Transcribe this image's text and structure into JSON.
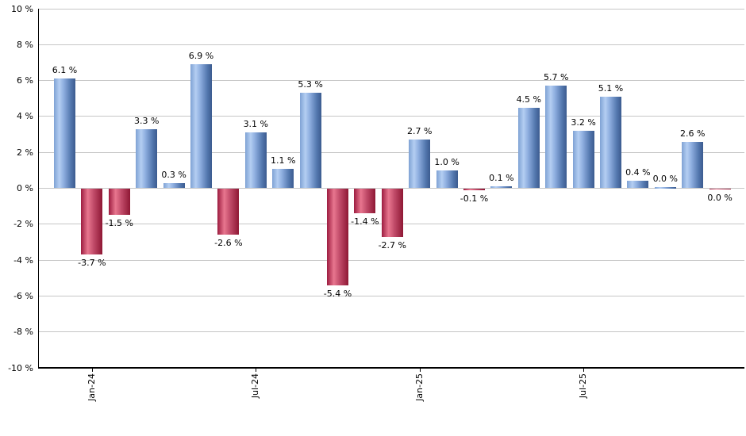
{
  "chart_data": {
    "type": "bar",
    "title": "",
    "xlabel": "",
    "ylabel": "",
    "ylim": [
      -10,
      10
    ],
    "grid": true,
    "legend": "none",
    "value_label_suffix": " %",
    "y_ticks": [
      {
        "value": 10,
        "label": "10 %"
      },
      {
        "value": 8,
        "label": "8 %"
      },
      {
        "value": 6,
        "label": "6 %"
      },
      {
        "value": 4,
        "label": "4 %"
      },
      {
        "value": 2,
        "label": "2 %"
      },
      {
        "value": 0,
        "label": "0 %"
      },
      {
        "value": -2,
        "label": "-2 %"
      },
      {
        "value": -4,
        "label": "-4 %"
      },
      {
        "value": -6,
        "label": "-6 %"
      },
      {
        "value": -8,
        "label": "-8 %"
      },
      {
        "value": -10,
        "label": "-10 %"
      }
    ],
    "x_ticks": [
      {
        "bar_index": 1,
        "label": "Jan-24"
      },
      {
        "bar_index": 7,
        "label": "Jul-24"
      },
      {
        "bar_index": 13,
        "label": "Jan-25"
      },
      {
        "bar_index": 19,
        "label": "Jul-25"
      }
    ],
    "bars": [
      {
        "value": 6.1,
        "label": "6.1 %",
        "negative": false
      },
      {
        "value": -3.7,
        "label": "-3.7 %",
        "negative": true
      },
      {
        "value": -1.5,
        "label": "-1.5 %",
        "negative": true
      },
      {
        "value": 3.3,
        "label": "3.3 %",
        "negative": false
      },
      {
        "value": 0.3,
        "label": "0.3 %",
        "negative": false
      },
      {
        "value": 6.9,
        "label": "6.9 %",
        "negative": false
      },
      {
        "value": -2.6,
        "label": "-2.6 %",
        "negative": true
      },
      {
        "value": 3.1,
        "label": "3.1 %",
        "negative": false
      },
      {
        "value": 1.1,
        "label": "1.1 %",
        "negative": false
      },
      {
        "value": 5.3,
        "label": "5.3 %",
        "negative": false
      },
      {
        "value": -5.4,
        "label": "-5.4 %",
        "negative": true
      },
      {
        "value": -1.4,
        "label": "-1.4 %",
        "negative": true
      },
      {
        "value": -2.7,
        "label": "-2.7 %",
        "negative": true
      },
      {
        "value": 2.7,
        "label": "2.7 %",
        "negative": false
      },
      {
        "value": 1.0,
        "label": "1.0 %",
        "negative": false
      },
      {
        "value": -0.1,
        "label": "-0.1 %",
        "negative": true
      },
      {
        "value": 0.1,
        "label": "0.1 %",
        "negative": false
      },
      {
        "value": 4.5,
        "label": "4.5 %",
        "negative": false
      },
      {
        "value": 5.7,
        "label": "5.7 %",
        "negative": false
      },
      {
        "value": 3.2,
        "label": "3.2 %",
        "negative": false
      },
      {
        "value": 5.1,
        "label": "5.1 %",
        "negative": false
      },
      {
        "value": 0.4,
        "label": "0.4 %",
        "negative": false
      },
      {
        "value": 0.0,
        "label": "0.0 %",
        "negative": false
      },
      {
        "value": 2.6,
        "label": "2.6 %",
        "negative": false
      },
      {
        "value": 0.0,
        "label": "0.0 %",
        "negative": true
      }
    ],
    "colors": {
      "positive_light": "#b4cef2",
      "positive_dark": "#3b5b8f",
      "negative_light": "#e8768f",
      "negative_dark": "#8e1734",
      "gridline": "#c6c6c6",
      "axis": "#000000",
      "text": "#000000"
    }
  }
}
